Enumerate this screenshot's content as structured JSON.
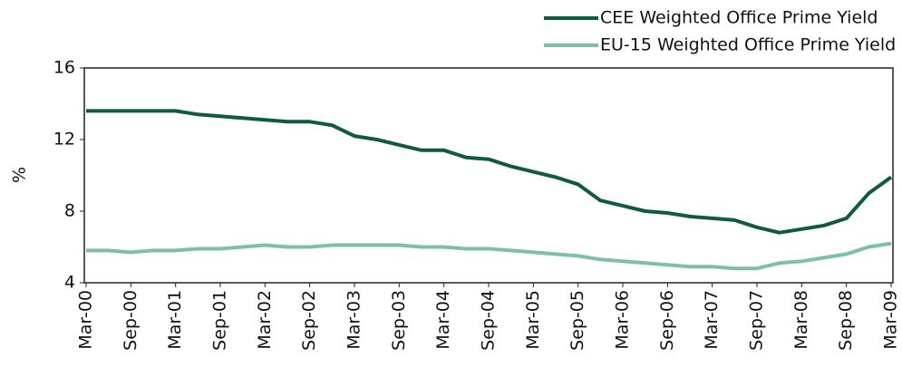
{
  "chart_data": {
    "type": "line",
    "y_label": "%",
    "categories": [
      "Mar-00",
      null,
      "Sep-00",
      null,
      "Mar-01",
      null,
      "Sep-01",
      null,
      "Mar-02",
      null,
      "Sep-02",
      null,
      "Mar-03",
      null,
      "Sep-03",
      null,
      "Mar-04",
      null,
      "Sep-04",
      null,
      "Mar-05",
      null,
      "Sep-05",
      null,
      "Mar-06",
      null,
      "Sep-06",
      null,
      "Mar-07",
      null,
      "Sep-07",
      null,
      "Mar-08",
      null,
      "Sep-08",
      null,
      "Mar-09"
    ],
    "series": [
      {
        "name": "CEE Weighted Office Prime Yield",
        "color": "#0f5a40",
        "values": [
          13.6,
          13.6,
          13.6,
          13.6,
          13.6,
          13.4,
          13.3,
          13.2,
          13.1,
          13.0,
          13.0,
          12.8,
          12.2,
          12.0,
          11.7,
          11.4,
          11.4,
          11.0,
          10.9,
          10.5,
          10.2,
          9.9,
          9.5,
          8.6,
          8.3,
          8.0,
          7.9,
          7.7,
          7.6,
          7.5,
          7.1,
          6.8,
          7.0,
          7.2,
          7.6,
          9.0,
          9.9
        ]
      },
      {
        "name": "EU-15 Weighted Office Prime Yield",
        "color": "#7fbfa8",
        "values": [
          5.8,
          5.8,
          5.7,
          5.8,
          5.8,
          5.9,
          5.9,
          6.0,
          6.1,
          6.0,
          6.0,
          6.1,
          6.1,
          6.1,
          6.1,
          6.0,
          6.0,
          5.9,
          5.9,
          5.8,
          5.7,
          5.6,
          5.5,
          5.3,
          5.2,
          5.1,
          5.0,
          4.9,
          4.9,
          4.8,
          4.8,
          5.1,
          5.2,
          5.4,
          5.6,
          6.0,
          6.2
        ]
      }
    ],
    "ylim": [
      4,
      16
    ],
    "yticks": [
      4,
      8,
      12,
      16
    ],
    "grid": false,
    "legend": "top-right"
  }
}
